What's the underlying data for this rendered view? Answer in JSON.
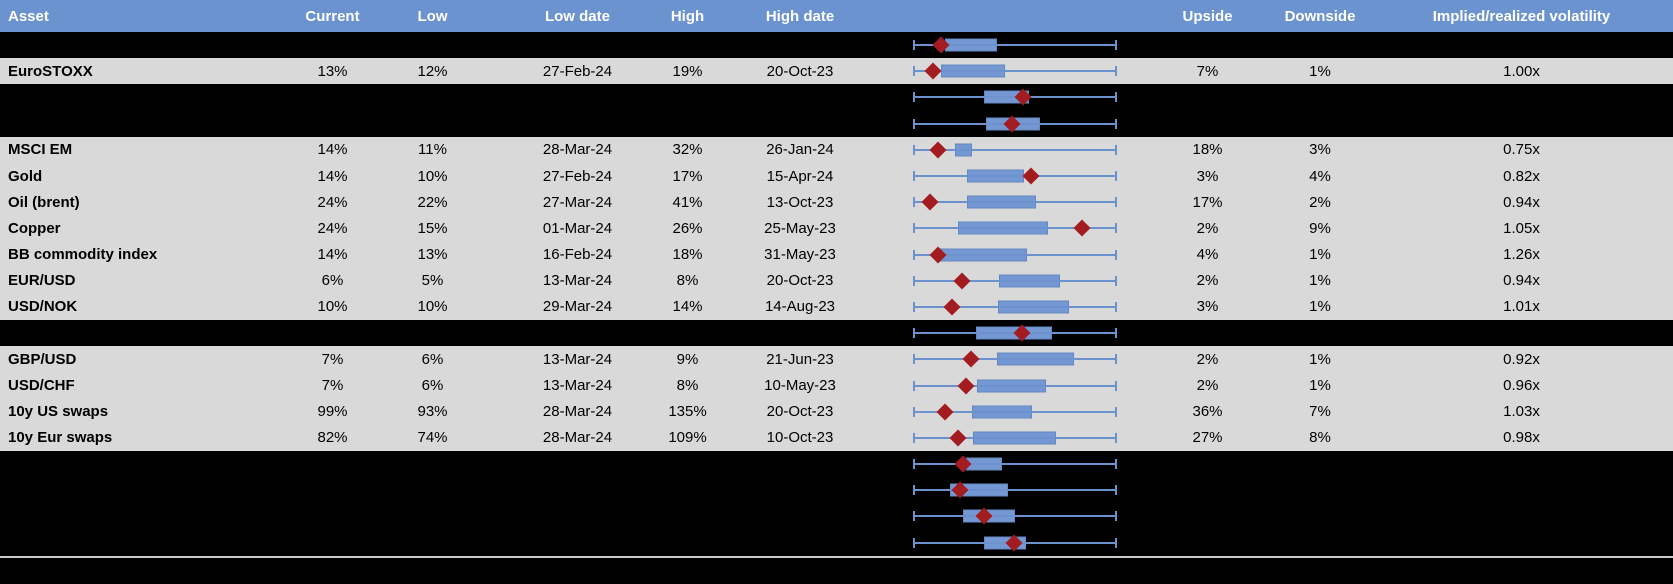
{
  "header": {
    "columns": [
      {
        "key": "asset",
        "label": "Asset"
      },
      {
        "key": "current",
        "label": "Current"
      },
      {
        "key": "low",
        "label": "Low"
      },
      {
        "key": "low_date",
        "label": "Low date"
      },
      {
        "key": "high",
        "label": "High"
      },
      {
        "key": "high_date",
        "label": "High date"
      },
      {
        "key": "plot",
        "label": ""
      },
      {
        "key": "upside",
        "label": "Upside"
      },
      {
        "key": "downside",
        "label": "Downside"
      },
      {
        "key": "implied_realized",
        "label": "Implied/realized volatility"
      }
    ]
  },
  "colors": {
    "header_bg": "#6b93cf",
    "header_text": "#ffffff",
    "row_gray": "#d9d9d9",
    "row_black": "#000000",
    "box_fill": "#7398d4",
    "box_border": "#6388c0",
    "whisker": "#6b92cc",
    "marker": "#a31c20",
    "separator": "#c9c9c9"
  },
  "boxplot_scale": {
    "whisker_low_pct": 0,
    "whisker_high_pct": 100
  },
  "rows": [
    {
      "type": "spacer",
      "boxplot": {
        "box_start": 15.8,
        "box_end": 41.3,
        "marker": 13.7
      }
    },
    {
      "type": "data",
      "asset": "EuroSTOXX",
      "current": "13%",
      "low": "12%",
      "low_date": "27-Feb-24",
      "high": "19%",
      "high_date": "20-Oct-23",
      "upside": "7%",
      "downside": "1%",
      "implied_realized": "1.00x",
      "boxplot": {
        "box_start": 13.9,
        "box_end": 44.9,
        "marker": 9.6
      }
    },
    {
      "type": "spacer",
      "boxplot": {
        "box_start": 34.6,
        "box_end": 56.7,
        "marker": 53.9
      }
    },
    {
      "type": "spacer",
      "boxplot": {
        "box_start": 35.9,
        "box_end": 62.1,
        "marker": 48.5
      }
    },
    {
      "type": "data",
      "asset": "MSCI EM",
      "current": "14%",
      "low": "11%",
      "low_date": "28-Mar-24",
      "high": "32%",
      "high_date": "26-Jan-24",
      "upside": "18%",
      "downside": "3%",
      "implied_realized": "0.75x",
      "boxplot": {
        "box_start": 20.7,
        "box_end": 28.9,
        "marker": 12.3
      }
    },
    {
      "type": "data",
      "asset": "Gold",
      "current": "14%",
      "low": "10%",
      "low_date": "27-Feb-24",
      "high": "17%",
      "high_date": "15-Apr-24",
      "upside": "3%",
      "downside": "4%",
      "implied_realized": "0.82x",
      "boxplot": {
        "box_start": 26.5,
        "box_end": 54.2,
        "marker": 57.8
      }
    },
    {
      "type": "data",
      "asset": "Oil (brent)",
      "current": "24%",
      "low": "22%",
      "low_date": "27-Mar-24",
      "high": "41%",
      "high_date": "13-Oct-23",
      "upside": "17%",
      "downside": "2%",
      "implied_realized": "0.94x",
      "boxplot": {
        "box_start": 26.5,
        "box_end": 60.5,
        "marker": 8.5
      }
    },
    {
      "type": "data",
      "asset": "Copper",
      "current": "24%",
      "low": "15%",
      "low_date": "01-Mar-24",
      "high": "26%",
      "high_date": "25-May-23",
      "upside": "2%",
      "downside": "9%",
      "implied_realized": "1.05x",
      "boxplot": {
        "box_start": 21.9,
        "box_end": 66.2,
        "marker": 82.8
      }
    },
    {
      "type": "data",
      "asset": "BB commodity index",
      "current": "14%",
      "low": "13%",
      "low_date": "16-Feb-24",
      "high": "18%",
      "high_date": "31-May-23",
      "upside": "4%",
      "downside": "1%",
      "implied_realized": "1.26x",
      "boxplot": {
        "box_start": 12.5,
        "box_end": 55.9,
        "marker": 12.1
      }
    },
    {
      "type": "data",
      "asset": "EUR/USD",
      "current": "6%",
      "low": "5%",
      "low_date": "13-Mar-24",
      "high": "8%",
      "high_date": "20-Oct-23",
      "upside": "2%",
      "downside": "1%",
      "implied_realized": "0.94x",
      "boxplot": {
        "box_start": 42.0,
        "box_end": 71.9,
        "marker": 24.0
      }
    },
    {
      "type": "data",
      "asset": "USD/NOK",
      "current": "10%",
      "low": "10%",
      "low_date": "29-Mar-24",
      "high": "14%",
      "high_date": "14-Aug-23",
      "upside": "3%",
      "downside": "1%",
      "implied_realized": "1.01x",
      "boxplot": {
        "box_start": 41.7,
        "box_end": 76.3,
        "marker": 19.1
      }
    },
    {
      "type": "spacer",
      "boxplot": {
        "box_start": 31.0,
        "box_end": 68.1,
        "marker": 53.4
      }
    },
    {
      "type": "data",
      "asset": "GBP/USD",
      "current": "7%",
      "low": "6%",
      "low_date": "13-Mar-24",
      "high": "9%",
      "high_date": "21-Jun-23",
      "upside": "2%",
      "downside": "1%",
      "implied_realized": "0.92x",
      "boxplot": {
        "box_start": 41.2,
        "box_end": 78.7,
        "marker": 28.4
      }
    },
    {
      "type": "data",
      "asset": "USD/CHF",
      "current": "7%",
      "low": "6%",
      "low_date": "13-Mar-24",
      "high": "8%",
      "high_date": "10-May-23",
      "upside": "2%",
      "downside": "1%",
      "implied_realized": "0.96x",
      "boxplot": {
        "box_start": 31.4,
        "box_end": 65.2,
        "marker": 26.0
      }
    },
    {
      "type": "data",
      "asset": "10y US swaps",
      "current": "99%",
      "low": "93%",
      "low_date": "28-Mar-24",
      "high": "135%",
      "high_date": "20-Oct-23",
      "upside": "36%",
      "downside": "7%",
      "implied_realized": "1.03x",
      "boxplot": {
        "box_start": 28.9,
        "box_end": 58.3,
        "marker": 15.8
      }
    },
    {
      "type": "data",
      "asset": "10y Eur swaps",
      "current": "82%",
      "low": "74%",
      "low_date": "28-Mar-24",
      "high": "109%",
      "high_date": "10-Oct-23",
      "upside": "27%",
      "downside": "8%",
      "implied_realized": "0.98x",
      "boxplot": {
        "box_start": 29.4,
        "box_end": 70.2,
        "marker": 22.1
      }
    },
    {
      "type": "spacer",
      "boxplot": {
        "box_start": 26.1,
        "box_end": 43.6,
        "marker": 24.5
      }
    },
    {
      "type": "spacer",
      "boxplot": {
        "box_start": 18.3,
        "box_end": 46.6,
        "marker": 22.8
      }
    },
    {
      "type": "spacer",
      "boxplot": {
        "box_start": 24.5,
        "box_end": 50.1,
        "marker": 35.0
      }
    },
    {
      "type": "spacer",
      "boxplot": {
        "box_start": 34.6,
        "box_end": 55.6,
        "marker": 49.3
      }
    }
  ]
}
